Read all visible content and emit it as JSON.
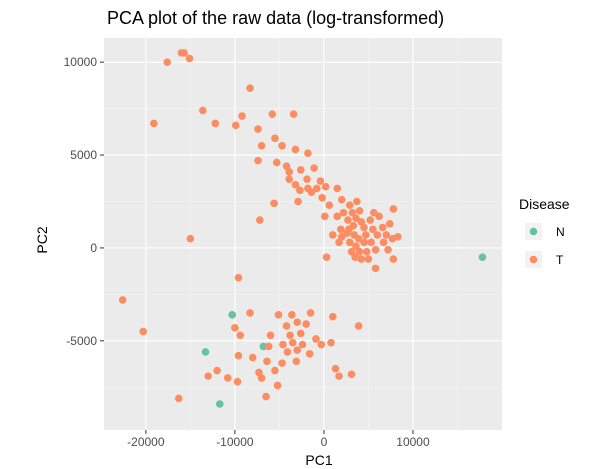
{
  "chart_data": {
    "type": "scatter",
    "title": "PCA plot of the raw data (log-transformed)",
    "xlabel": "PC1",
    "ylabel": "PC2",
    "xlim": [
      -24700,
      20000
    ],
    "ylim": [
      -9800,
      11300
    ],
    "x_ticks": [
      -20000,
      -10000,
      0,
      10000
    ],
    "x_tick_labels": [
      "-20000",
      "-10000",
      "0",
      "10000"
    ],
    "y_ticks": [
      -5000,
      0,
      5000,
      10000
    ],
    "y_tick_labels": [
      "-5000",
      "0",
      "5000",
      "10000"
    ],
    "grid": true,
    "legend": {
      "title": "Disease",
      "position": "right"
    },
    "series": [
      {
        "name": "N",
        "color": "#66c2a5",
        "points": [
          [
            17800,
            -500
          ],
          [
            -10300,
            -3600
          ],
          [
            -13300,
            -5600
          ],
          [
            -6800,
            -5300
          ],
          [
            -11700,
            -8400
          ]
        ]
      },
      {
        "name": "T",
        "color": "#fc8d62",
        "points": [
          [
            -16000,
            10500
          ],
          [
            -15700,
            10500
          ],
          [
            -15100,
            10200
          ],
          [
            -17600,
            10000
          ],
          [
            -8300,
            8600
          ],
          [
            -13600,
            7400
          ],
          [
            -9200,
            7100
          ],
          [
            -5800,
            7200
          ],
          [
            -3400,
            7200
          ],
          [
            -19100,
            6700
          ],
          [
            -12200,
            6700
          ],
          [
            -9900,
            6600
          ],
          [
            -7400,
            6400
          ],
          [
            -5500,
            5900
          ],
          [
            -7000,
            5500
          ],
          [
            -4700,
            5500
          ],
          [
            -3200,
            5300
          ],
          [
            -1800,
            5100
          ],
          [
            -7400,
            4700
          ],
          [
            -5300,
            4600
          ],
          [
            -4200,
            4400
          ],
          [
            -3900,
            4100
          ],
          [
            -2600,
            4200
          ],
          [
            -1100,
            4300
          ],
          [
            -3900,
            3700
          ],
          [
            -1900,
            3700
          ],
          [
            -400,
            3600
          ],
          [
            -3200,
            3400
          ],
          [
            -1800,
            3200
          ],
          [
            -800,
            3200
          ],
          [
            200,
            3300
          ],
          [
            -2700,
            3100
          ],
          [
            -1400,
            3000
          ],
          [
            1500,
            3200
          ],
          [
            -2900,
            2500
          ],
          [
            -200,
            2700
          ],
          [
            2000,
            2600
          ],
          [
            -5600,
            2400
          ],
          [
            600,
            2300
          ],
          [
            2900,
            2300
          ],
          [
            3700,
            2500
          ],
          [
            2200,
            1900
          ],
          [
            3200,
            1900
          ],
          [
            4000,
            2000
          ],
          [
            5600,
            1900
          ],
          [
            7800,
            2100
          ],
          [
            100,
            1700
          ],
          [
            1500,
            1700
          ],
          [
            2700,
            1500
          ],
          [
            3600,
            1600
          ],
          [
            4200,
            1400
          ],
          [
            5200,
            1500
          ],
          [
            6200,
            1700
          ],
          [
            -7200,
            1500
          ],
          [
            1900,
            1000
          ],
          [
            2800,
            1000
          ],
          [
            3300,
            1200
          ],
          [
            4500,
            1100
          ],
          [
            5500,
            1000
          ],
          [
            6600,
            1100
          ],
          [
            7400,
            1300
          ],
          [
            1000,
            700
          ],
          [
            2000,
            600
          ],
          [
            2600,
            800
          ],
          [
            3400,
            700
          ],
          [
            3900,
            500
          ],
          [
            4700,
            700
          ],
          [
            6000,
            700
          ],
          [
            7000,
            700
          ],
          [
            8300,
            600
          ],
          [
            -15000,
            500
          ],
          [
            1700,
            300
          ],
          [
            2900,
            300
          ],
          [
            3600,
            100
          ],
          [
            4500,
            300
          ],
          [
            5300,
            300
          ],
          [
            6700,
            300
          ],
          [
            7700,
            500
          ],
          [
            3100,
            -200
          ],
          [
            4000,
            -200
          ],
          [
            4800,
            -200
          ],
          [
            5800,
            -100
          ],
          [
            7200,
            -100
          ],
          [
            300,
            -500
          ],
          [
            3500,
            -500
          ],
          [
            4200,
            -600
          ],
          [
            5000,
            -600
          ],
          [
            7800,
            -600
          ],
          [
            5800,
            -1100
          ],
          [
            -9600,
            -1600
          ],
          [
            -22600,
            -2800
          ],
          [
            -20300,
            -4500
          ],
          [
            -8300,
            -3500
          ],
          [
            -5100,
            -3600
          ],
          [
            -3600,
            -3600
          ],
          [
            -1500,
            -3500
          ],
          [
            1000,
            -3700
          ],
          [
            -10000,
            -4300
          ],
          [
            -4200,
            -4200
          ],
          [
            -3000,
            -4000
          ],
          [
            -2000,
            -4100
          ],
          [
            3900,
            -4200
          ],
          [
            -9400,
            -4700
          ],
          [
            -6000,
            -4700
          ],
          [
            -3800,
            -4700
          ],
          [
            -2600,
            -4600
          ],
          [
            -900,
            -4900
          ],
          [
            -4600,
            -5200
          ],
          [
            -3500,
            -5100
          ],
          [
            -2400,
            -5200
          ],
          [
            -300,
            -5200
          ],
          [
            800,
            -5100
          ],
          [
            -6200,
            -5300
          ],
          [
            -4100,
            -5600
          ],
          [
            -3000,
            -5500
          ],
          [
            -1600,
            -5700
          ],
          [
            -9600,
            -5800
          ],
          [
            -8000,
            -5900
          ],
          [
            -6400,
            -6100
          ],
          [
            -4700,
            -6200
          ],
          [
            -3100,
            -6100
          ],
          [
            -12000,
            -6600
          ],
          [
            -7300,
            -6700
          ],
          [
            -5500,
            -6600
          ],
          [
            1300,
            -6500
          ],
          [
            -13000,
            -6900
          ],
          [
            -10800,
            -7000
          ],
          [
            -9700,
            -7200
          ],
          [
            -7000,
            -7000
          ],
          [
            3100,
            -6800
          ],
          [
            1700,
            -6900
          ],
          [
            -5200,
            -7400
          ],
          [
            -16300,
            -8100
          ],
          [
            -6500,
            -8000
          ]
        ]
      }
    ]
  }
}
